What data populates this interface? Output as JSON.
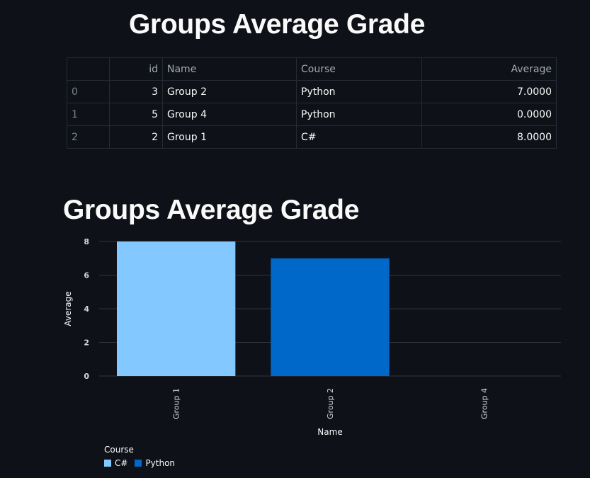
{
  "page": {
    "title": "Groups Average Grade",
    "chart_title": "Groups Average Grade"
  },
  "table": {
    "columns": [
      "",
      "id",
      "Name",
      "Course",
      "Average"
    ],
    "rows": [
      {
        "index": "0",
        "id": "3",
        "name": "Group 2",
        "course": "Python",
        "average": "7.0000"
      },
      {
        "index": "1",
        "id": "5",
        "name": "Group 4",
        "course": "Python",
        "average": "0.0000"
      },
      {
        "index": "2",
        "id": "2",
        "name": "Group 1",
        "course": "C#",
        "average": "8.0000"
      }
    ]
  },
  "chart_data": {
    "type": "bar",
    "title": "Groups Average Grade",
    "xlabel": "Name",
    "ylabel": "Average",
    "categories": [
      "Group 1",
      "Group 2",
      "Group 4"
    ],
    "values": [
      8,
      7,
      0
    ],
    "bar_course": [
      "C#",
      "Python",
      "Python"
    ],
    "ylim": [
      0,
      8
    ],
    "yticks": [
      0,
      2,
      4,
      6,
      8
    ],
    "grid": true,
    "legend": {
      "title": "Course",
      "placement": "bottom-left",
      "entries": [
        {
          "name": "C#",
          "color": "#83c9ff"
        },
        {
          "name": "Python",
          "color": "#0068c9"
        }
      ]
    },
    "colors": {
      "C#": "#83c9ff",
      "Python": "#0068c9"
    }
  }
}
